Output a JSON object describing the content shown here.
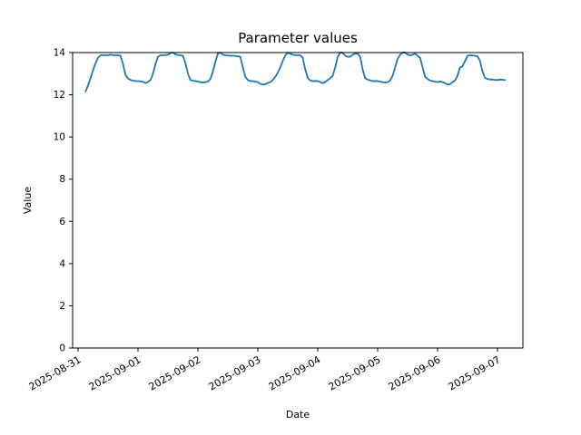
{
  "figure": {
    "title": "Parameter values",
    "xlabel": "Date",
    "ylabel": "Value"
  },
  "chart_data": {
    "type": "line",
    "title": "Parameter values",
    "xlabel": "Date",
    "ylabel": "Value",
    "grid": false,
    "legend": null,
    "line_color": "#1f77b4",
    "spine_color": "#000000",
    "ylim": [
      0,
      14
    ],
    "yticks": [
      0,
      2,
      4,
      6,
      8,
      10,
      12,
      14
    ],
    "xticks": [
      "2025-08-31",
      "2025-09-01",
      "2025-09-02",
      "2025-09-03",
      "2025-09-04",
      "2025-09-05",
      "2025-09-06",
      "2025-09-07"
    ],
    "xtick_rotation_deg": -30,
    "series": [
      {
        "name": "parameter",
        "color": "#1f77b4",
        "x_start": "2025-08-31 03:00",
        "x_step_hours": 1,
        "values": [
          12.15,
          12.45,
          12.8,
          13.15,
          13.5,
          13.75,
          13.87,
          13.87,
          13.88,
          13.87,
          13.9,
          13.88,
          13.87,
          13.87,
          13.85,
          13.45,
          12.95,
          12.77,
          12.7,
          12.67,
          12.65,
          12.65,
          12.63,
          12.62,
          12.55,
          12.6,
          12.7,
          13.0,
          13.45,
          13.8,
          13.87,
          13.87,
          13.88,
          13.9,
          13.98,
          14.0,
          13.92,
          13.88,
          13.87,
          13.85,
          13.5,
          13.0,
          12.7,
          12.66,
          12.65,
          12.63,
          12.6,
          12.58,
          12.6,
          12.62,
          12.75,
          13.1,
          13.55,
          13.95,
          14.0,
          13.9,
          13.87,
          13.86,
          13.85,
          13.85,
          13.84,
          13.82,
          13.8,
          13.3,
          12.85,
          12.7,
          12.65,
          12.65,
          12.62,
          12.6,
          12.52,
          12.48,
          12.5,
          12.55,
          12.6,
          12.7,
          12.85,
          13.05,
          13.3,
          13.6,
          13.87,
          14.0,
          13.95,
          13.9,
          13.88,
          13.87,
          13.87,
          13.75,
          13.2,
          12.8,
          12.68,
          12.65,
          12.65,
          12.65,
          12.6,
          12.55,
          12.6,
          12.7,
          12.78,
          12.9,
          13.3,
          13.8,
          14.0,
          14.0,
          13.85,
          13.8,
          13.8,
          13.9,
          13.95,
          13.95,
          13.8,
          13.2,
          12.78,
          12.72,
          12.68,
          12.65,
          12.65,
          12.65,
          12.62,
          12.6,
          12.58,
          12.6,
          12.68,
          12.9,
          13.3,
          13.7,
          13.9,
          14.0,
          14.0,
          13.9,
          13.87,
          13.9,
          13.95,
          13.85,
          13.75,
          13.3,
          12.85,
          12.75,
          12.67,
          12.65,
          12.62,
          12.6,
          12.63,
          12.6,
          12.55,
          12.48,
          12.5,
          12.6,
          12.68,
          12.9,
          13.3,
          13.35,
          13.6,
          13.85,
          13.87,
          13.86,
          13.85,
          13.83,
          13.6,
          13.1,
          12.8,
          12.75,
          12.72,
          12.73,
          12.7,
          12.7,
          12.72,
          12.71,
          12.7
        ]
      }
    ]
  }
}
